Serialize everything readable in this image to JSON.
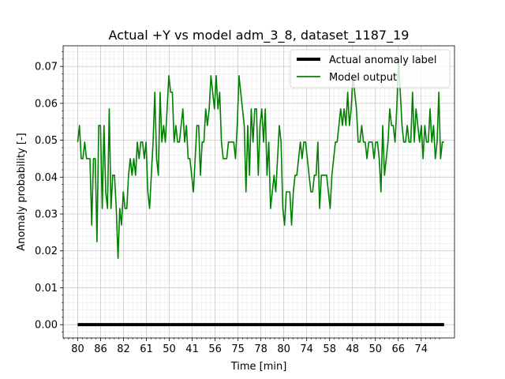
{
  "chart_data": {
    "type": "line",
    "title": "Actual +Y vs model adm_3_8, dataset_1187_19",
    "xlabel": "Time [min]",
    "ylabel": "Anomaly probability [-]",
    "xlim": [
      -3.5,
      90.5
    ],
    "ylim": [
      -0.0036,
      0.0756
    ],
    "yticks": [
      0.0,
      0.01,
      0.02,
      0.03,
      0.04,
      0.05,
      0.06,
      0.07
    ],
    "ytick_labels": [
      "0.00",
      "0.01",
      "0.02",
      "0.03",
      "0.04",
      "0.05",
      "0.06",
      "0.07"
    ],
    "xtick_labels": [
      "80",
      "86",
      "82",
      "61",
      "50",
      "41",
      "56",
      "75",
      "78",
      "80",
      "74",
      "58",
      "48",
      "50",
      "66",
      "74"
    ],
    "xtick_step": 5.5,
    "grid": true,
    "minor_grid": true,
    "legend_position": "top-right",
    "series": [
      {
        "name": "Actual anomaly label",
        "color": "#000000",
        "x_start": 0,
        "x_end": 88,
        "values": [
          0.0,
          0.0
        ]
      },
      {
        "name": "Model output",
        "color": "#008000",
        "x_start": 0,
        "x_end": 88,
        "values": [
          0.0495,
          0.054,
          0.045,
          0.045,
          0.0495,
          0.045,
          0.045,
          0.045,
          0.027,
          0.045,
          0.045,
          0.0225,
          0.054,
          0.054,
          0.0315,
          0.054,
          0.036,
          0.0315,
          0.0585,
          0.0315,
          0.0405,
          0.0405,
          0.0315,
          0.018,
          0.0315,
          0.027,
          0.036,
          0.0315,
          0.0315,
          0.0405,
          0.045,
          0.0405,
          0.045,
          0.0405,
          0.0495,
          0.045,
          0.0495,
          0.0495,
          0.045,
          0.0495,
          0.036,
          0.0315,
          0.0405,
          0.0495,
          0.063,
          0.045,
          0.0405,
          0.063,
          0.0495,
          0.054,
          0.0495,
          0.0585,
          0.0675,
          0.063,
          0.063,
          0.0495,
          0.054,
          0.0495,
          0.0495,
          0.054,
          0.0585,
          0.0495,
          0.054,
          0.045,
          0.045,
          0.0405,
          0.036,
          0.045,
          0.054,
          0.054,
          0.0405,
          0.0495,
          0.0495,
          0.0585,
          0.054,
          0.0585,
          0.0675,
          0.063,
          0.0585,
          0.0675,
          0.0585,
          0.063,
          0.0495,
          0.045,
          0.045,
          0.045,
          0.0495,
          0.0495,
          0.0495,
          0.0495,
          0.045,
          0.054,
          0.0675,
          0.063,
          0.0585,
          0.054,
          0.036,
          0.054,
          0.0405,
          0.0585,
          0.0495,
          0.0585,
          0.0585,
          0.0405,
          0.054,
          0.0585,
          0.0495,
          0.0585,
          0.0405,
          0.0495,
          0.0315,
          0.036,
          0.0405,
          0.036,
          0.045,
          0.054,
          0.0495,
          0.0315,
          0.027,
          0.036,
          0.036,
          0.036,
          0.027,
          0.036,
          0.0405,
          0.0405,
          0.045,
          0.0495,
          0.045,
          0.0495,
          0.0495,
          0.045,
          0.0405,
          0.036,
          0.036,
          0.0405,
          0.0405,
          0.0495,
          0.0315,
          0.0405,
          0.0405,
          0.0405,
          0.0405,
          0.036,
          0.0315,
          0.0405,
          0.045,
          0.0495,
          0.0495,
          0.054,
          0.0585,
          0.054,
          0.0585,
          0.054,
          0.063,
          0.054,
          0.0585,
          0.0675,
          0.063,
          0.0585,
          0.0495,
          0.0495,
          0.054,
          0.0495,
          0.0495,
          0.045,
          0.0495,
          0.0495,
          0.0495,
          0.045,
          0.0495,
          0.0495,
          0.045,
          0.036,
          0.054,
          0.0405,
          0.045,
          0.0495,
          0.0585,
          0.054,
          0.054,
          0.0495,
          0.0585,
          0.072,
          0.063,
          0.054,
          0.0495,
          0.0495,
          0.054,
          0.0495,
          0.0495,
          0.063,
          0.0495,
          0.0585,
          0.054,
          0.0495,
          0.054,
          0.045,
          0.054,
          0.0495,
          0.0495,
          0.0585,
          0.0495,
          0.054,
          0.045,
          0.0495,
          0.063,
          0.045,
          0.0495,
          0.0495
        ]
      }
    ]
  }
}
